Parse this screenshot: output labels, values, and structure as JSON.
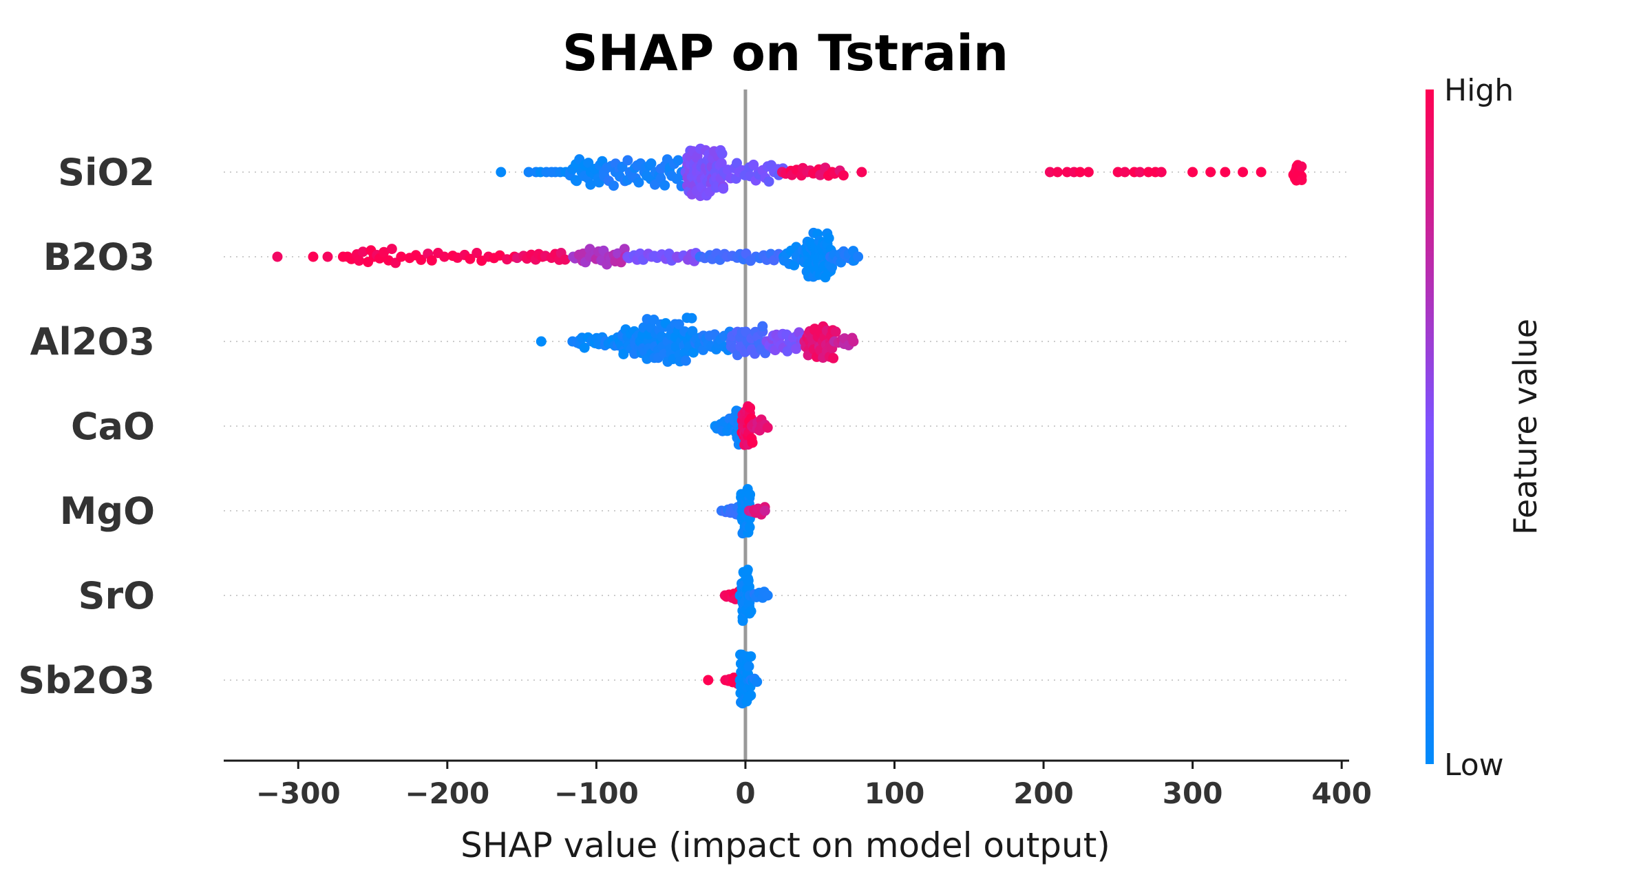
{
  "chart_data": {
    "type": "scatter",
    "subtype": "shap-beeswarm",
    "title": "SHAP on Tstrain",
    "xlabel": "SHAP value (impact on model output)",
    "xlim": [
      -350,
      405
    ],
    "xticks": [
      -300,
      -200,
      -100,
      0,
      100,
      200,
      300,
      400
    ],
    "xtick_labels": [
      "−300",
      "−200",
      "−100",
      "0",
      "100",
      "200",
      "300",
      "400"
    ],
    "grid": false,
    "colorbar": {
      "title": "Feature value",
      "high_label": "High",
      "low_label": "Low",
      "low_color": "#008bfb",
      "high_color": "#ff0052"
    },
    "features": [
      {
        "name": "SiO2",
        "groups": [
          {
            "x": -164,
            "c": 0.0,
            "n": 1
          },
          {
            "x": [
              -145,
              -120
            ],
            "c": 0.05,
            "n": 8
          },
          {
            "x": [
              -118,
              -95
            ],
            "c": 0.05,
            "n": 22,
            "spread": 1.6
          },
          {
            "x": [
              -95,
              -40
            ],
            "c": 0.1,
            "n": 45,
            "spread": 1.8
          },
          {
            "x": [
              -40,
              -15
            ],
            "c": 0.5,
            "n": 70,
            "spread": 3.0
          },
          {
            "x": [
              -15,
              25
            ],
            "c": 0.45,
            "n": 25,
            "spread": 1.2
          },
          {
            "x": [
              25,
              65
            ],
            "c": 0.95,
            "n": 18,
            "spread": 0.6
          },
          {
            "x": 78,
            "c": 1.0,
            "n": 1
          },
          {
            "x": [
              205,
              230
            ],
            "c": 1.0,
            "n": 6
          },
          {
            "x": [
              250,
              280
            ],
            "c": 1.0,
            "n": 7
          },
          {
            "x": [
              300,
              345
            ],
            "c": 1.0,
            "n": 5
          },
          {
            "x": [
              368,
              373
            ],
            "c": 1.0,
            "n": 14,
            "spread": 1.2
          }
        ]
      },
      {
        "name": "B2O3",
        "groups": [
          {
            "x": -314,
            "c": 1.0,
            "n": 1
          },
          {
            "x": [
              -290,
              -270
            ],
            "c": 1.0,
            "n": 3
          },
          {
            "x": [
              -266,
              -235
            ],
            "c": 1.0,
            "n": 14,
            "spread": 1.0
          },
          {
            "x": [
              -230,
              -160
            ],
            "c": 1.0,
            "n": 18,
            "spread": 0.6
          },
          {
            "x": [
              -155,
              -120
            ],
            "c": 0.95,
            "n": 14,
            "spread": 0.6
          },
          {
            "x": [
              -115,
              -80
            ],
            "c": 0.7,
            "n": 22,
            "spread": 1.0
          },
          {
            "x": [
              -80,
              -30
            ],
            "c": 0.5,
            "n": 22,
            "spread": 0.6
          },
          {
            "x": [
              -30,
              25
            ],
            "c": 0.25,
            "n": 22,
            "spread": 0.6
          },
          {
            "x": [
              25,
              40
            ],
            "c": 0.05,
            "n": 12,
            "spread": 1.5
          },
          {
            "x": [
              40,
              58
            ],
            "c": 0.0,
            "n": 60,
            "spread": 3.0
          },
          {
            "x": [
              58,
              75
            ],
            "c": 0.1,
            "n": 15,
            "spread": 0.8
          }
        ]
      },
      {
        "name": "Al2O3",
        "groups": [
          {
            "x": -137,
            "c": 0.0,
            "n": 1
          },
          {
            "x": [
              -115,
              -85
            ],
            "c": 0.05,
            "n": 20,
            "spread": 0.8
          },
          {
            "x": [
              -85,
              -70
            ],
            "c": 0.05,
            "n": 20,
            "spread": 2.0
          },
          {
            "x": [
              -70,
              -35
            ],
            "c": 0.05,
            "n": 55,
            "spread": 3.0
          },
          {
            "x": [
              -35,
              -10
            ],
            "c": 0.1,
            "n": 22,
            "spread": 1.2
          },
          {
            "x": [
              -10,
              15
            ],
            "c": 0.3,
            "n": 30,
            "spread": 2.0
          },
          {
            "x": [
              15,
              40
            ],
            "c": 0.5,
            "n": 25,
            "spread": 1.4
          },
          {
            "x": [
              40,
              60
            ],
            "c": 0.9,
            "n": 35,
            "spread": 2.2
          },
          {
            "x": [
              60,
              73
            ],
            "c": 0.8,
            "n": 8,
            "spread": 0.6
          }
        ]
      },
      {
        "name": "CaO",
        "groups": [
          {
            "x": [
              -20,
              -5
            ],
            "c": 0.05,
            "n": 10,
            "spread": 1.0
          },
          {
            "x": [
              -7,
              -3
            ],
            "c": 0.05,
            "n": 20,
            "spread": 2.4
          },
          {
            "x": [
              -2,
              4
            ],
            "c": 0.95,
            "n": 28,
            "spread": 2.6
          },
          {
            "x": [
              4,
              14
            ],
            "c": 0.9,
            "n": 10,
            "spread": 0.8
          }
        ]
      },
      {
        "name": "MgO",
        "groups": [
          {
            "x": [
              -15,
              -4
            ],
            "c": 0.2,
            "n": 8,
            "spread": 0.5
          },
          {
            "x": [
              -3,
              3
            ],
            "c": 0.0,
            "n": 40,
            "spread": 3.2
          },
          {
            "x": [
              3,
              14
            ],
            "c": 0.85,
            "n": 8,
            "spread": 0.5
          }
        ]
      },
      {
        "name": "SrO",
        "groups": [
          {
            "x": [
              -13,
              -4
            ],
            "c": 1.0,
            "n": 8,
            "spread": 0.5
          },
          {
            "x": [
              -3,
              3
            ],
            "c": 0.0,
            "n": 40,
            "spread": 3.2
          },
          {
            "x": [
              3,
              14
            ],
            "c": 0.1,
            "n": 8,
            "spread": 0.5
          }
        ]
      },
      {
        "name": "Sb2O3",
        "groups": [
          {
            "x": -25,
            "c": 1.0,
            "n": 1
          },
          {
            "x": [
              -13,
              -6
            ],
            "c": 1.0,
            "n": 6,
            "spread": 0.5
          },
          {
            "x": [
              -4,
              3
            ],
            "c": 0.0,
            "n": 42,
            "spread": 3.2
          },
          {
            "x": [
              3,
              7
            ],
            "c": 0.05,
            "n": 4,
            "spread": 0.5
          }
        ]
      }
    ]
  }
}
